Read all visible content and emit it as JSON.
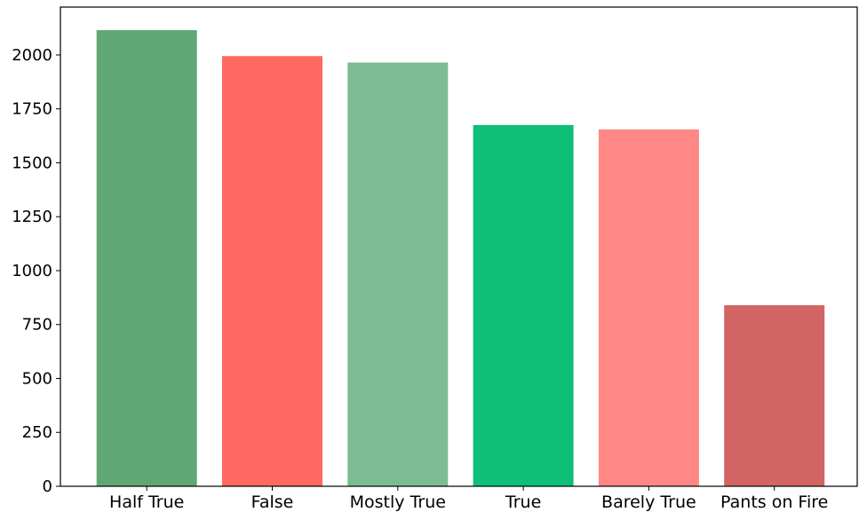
{
  "chart_data": {
    "type": "bar",
    "title": "",
    "xlabel": "",
    "ylabel": "",
    "categories": [
      "Half True",
      "False",
      "Mostly True",
      "True",
      "Barely True",
      "Pants on Fire"
    ],
    "values": [
      2115,
      1995,
      1965,
      1675,
      1655,
      840
    ],
    "colors": [
      "#61a775",
      "#ff6962",
      "#7cbc92",
      "#0dbf77",
      "#ff8786",
      "#d26463"
    ],
    "ylim": [
      0,
      2222
    ],
    "yticks": [
      0,
      250,
      500,
      750,
      1000,
      1250,
      1500,
      1750,
      2000
    ],
    "grid": false,
    "legend": "none"
  }
}
